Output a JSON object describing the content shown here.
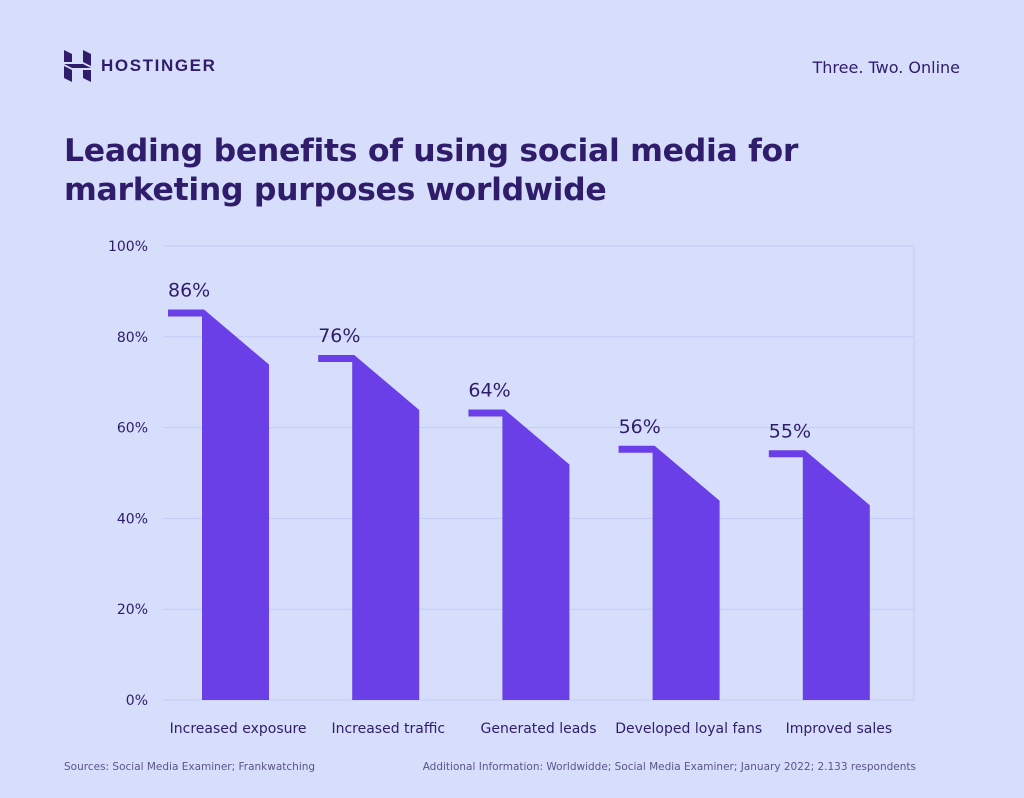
{
  "brand": {
    "name": "HOSTINGER",
    "tagline": "Three. Two. Online"
  },
  "title": "Leading benefits of using social media for marketing purposes worldwide",
  "chart_data": {
    "type": "bar",
    "categories": [
      "Increased exposure",
      "Increased traffic",
      "Generated leads",
      "Developed loyal fans",
      "Improved sales"
    ],
    "values": [
      86,
      76,
      64,
      56,
      55
    ],
    "value_labels": [
      "86%",
      "76%",
      "64%",
      "56%",
      "55%"
    ],
    "title": "Leading benefits of using social media for marketing purposes worldwide",
    "xlabel": "",
    "ylabel": "",
    "ylim": [
      0,
      100
    ],
    "yticks": [
      0,
      20,
      40,
      60,
      80,
      100
    ],
    "ytick_labels": [
      "0%",
      "20%",
      "40%",
      "60%",
      "80%",
      "100%"
    ],
    "grid": true,
    "bar_color": "#6a3fe8"
  },
  "footer": {
    "sources": "Sources: Social Media Examiner; Frankwatching",
    "additional": "Additional Information: Worldwidde; Social Media Examiner; January 2022; 2.133 respondents"
  },
  "colors": {
    "background": "#d6defc",
    "text": "#2f1c6a",
    "accent": "#6a3fe8",
    "grid": "#c2cbf3"
  }
}
